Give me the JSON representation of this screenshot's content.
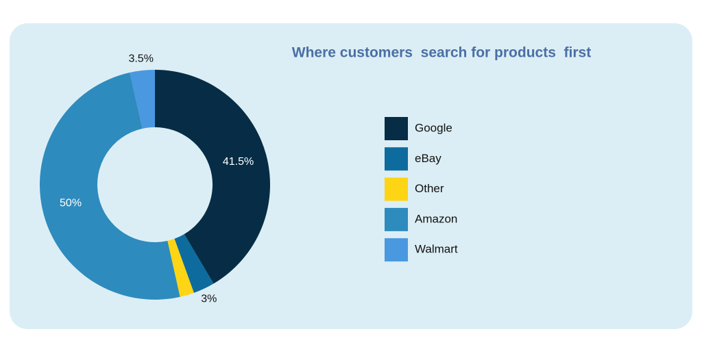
{
  "chart_data": {
    "type": "donut",
    "title": "Where customers  search for products  first",
    "categories": [
      "Google",
      "eBay",
      "Other",
      "Amazon",
      "Walmart"
    ],
    "values": [
      41.5,
      3,
      2,
      50,
      3.5
    ],
    "value_labels": [
      "41.5%",
      "3%",
      null,
      "50%",
      "3.5%"
    ],
    "colors": [
      "#062d45",
      "#0e6b9e",
      "#fdd515",
      "#2e8bbd",
      "#4a98e0"
    ],
    "legend": "right"
  }
}
